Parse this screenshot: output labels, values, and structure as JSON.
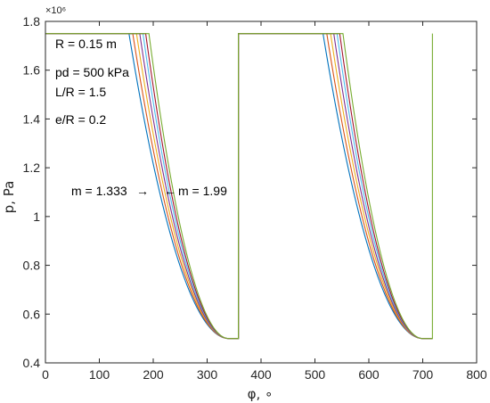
{
  "chart_data": {
    "type": "line",
    "title": "",
    "xlabel": "φ, ∘",
    "ylabel": "p, Pa",
    "xlim": [
      0,
      800
    ],
    "ylim": [
      0.4,
      1.8
    ],
    "y_exponent_label": "×10⁶",
    "xticks": [
      0,
      100,
      200,
      300,
      400,
      500,
      600,
      700,
      800
    ],
    "xtick_labels": [
      "0",
      "100",
      "200",
      "300",
      "400",
      "500",
      "600",
      "700",
      "800"
    ],
    "yticks": [
      0.4,
      0.6,
      0.8,
      1.0,
      1.2,
      1.4,
      1.6,
      1.8
    ],
    "ytick_labels": [
      "0.4",
      "0.6",
      "0.8",
      "1",
      "1.2",
      "1.4",
      "1.6",
      "1.8"
    ],
    "grid": false,
    "legend": "none",
    "p_max": 1.75,
    "p_min": 0.5,
    "plateau_start": 0,
    "decline_end": 340,
    "jump_at": 358,
    "period": 360,
    "final_phi": 718,
    "series": [
      {
        "color": "#0072BD",
        "decline_start": 155
      },
      {
        "color": "#D95319",
        "decline_start": 162
      },
      {
        "color": "#EDB120",
        "decline_start": 169
      },
      {
        "color": "#7E2F8E",
        "decline_start": 175
      },
      {
        "color": "#4DBEEE",
        "decline_start": 181
      },
      {
        "color": "#A2142F",
        "decline_start": 186
      },
      {
        "color": "#77AC30",
        "decline_start": 192
      }
    ],
    "annotations": {
      "params": [
        "R = 0.15 m",
        "pd = 500 kPa",
        "L/R = 1.5",
        "e/R = 0.2"
      ],
      "m_low": {
        "text": "m = 1.333",
        "arrow": "→"
      },
      "m_high": {
        "text": "m = 1.99",
        "arrow": "←"
      }
    }
  }
}
